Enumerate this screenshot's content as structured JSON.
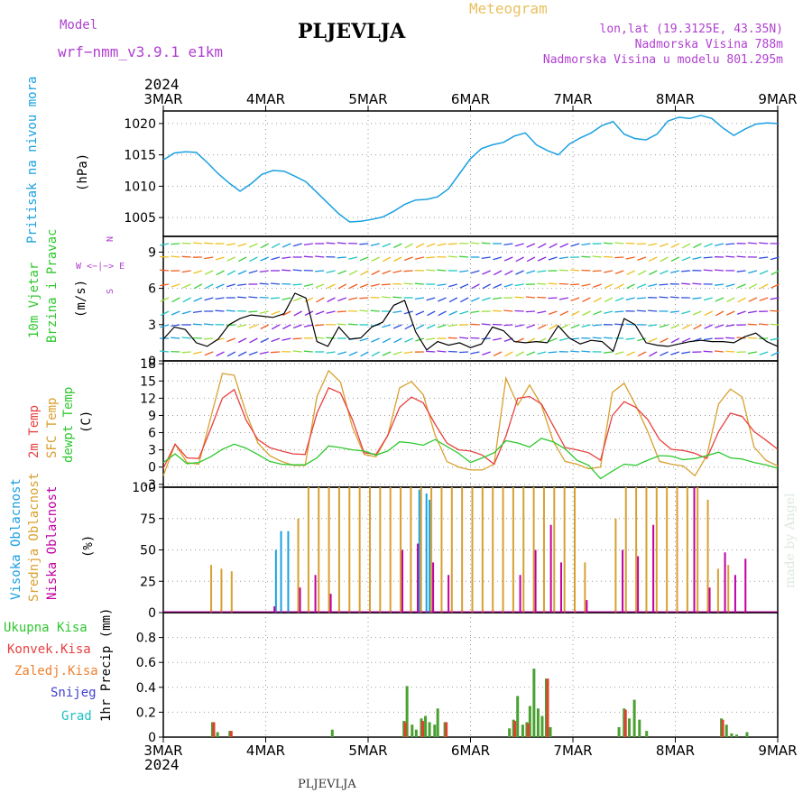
{
  "header": {
    "model_label": "Model",
    "model_name": "wrf−nmm_v3.9.1  e1km",
    "station": "PLJEVLJA",
    "meteogram": "Meteogram",
    "lonlat": "lon,lat (19.3125E, 43.35N)",
    "altitude": "Nadmorska Visina 788m",
    "model_altitude": "Nadmorska Visina u modelu 801.295m",
    "year_top": "2024",
    "year_bottom": "2024",
    "footer_station": "PLJEVLJA",
    "credit": "made by Angel"
  },
  "colors": {
    "pressure": "#1aa0e0",
    "t2m": "#e84040",
    "sfc": "#d8a030",
    "dew": "#2ec82e",
    "high_cloud": "#1aa0e0",
    "mid_cloud": "#d8a030",
    "low_cloud": "#c000a0",
    "total_precip": "#4aa030",
    "conv_precip": "#e04030",
    "purple_label": "#b040d0"
  },
  "panel_labels": {
    "pressure": [
      "Pritisak na nivou mora",
      "(hPa)"
    ],
    "wind": [
      "10m Vjetar",
      "Brzina i Pravac",
      "(m/s)"
    ],
    "wind_compass": [
      "N",
      "W  <−|−>  E",
      "S"
    ],
    "temp": [
      "2m Temp",
      "SFC Temp",
      "dewpt Temp",
      "(C)"
    ],
    "cloud": [
      "Visoka Oblacnost",
      "Srednja Oblacnost",
      "Niska Oblacnost",
      "(%)"
    ],
    "precip_legend": [
      "Ukupna Kisa",
      "Konvek.Kisa",
      "Zaledj.Kisa",
      "Snijeg",
      "Grad"
    ],
    "precip_unit": "1hr Precip (mm)"
  },
  "chart_data": [
    {
      "type": "line",
      "panel": "pressure",
      "x_ticks": [
        "3MAR",
        "4MAR",
        "5MAR",
        "6MAR",
        "7MAR",
        "8MAR",
        "9MAR"
      ],
      "ylim": [
        1002,
        1022
      ],
      "y_ticks": [
        1005,
        1010,
        1015,
        1020
      ],
      "series": [
        {
          "values": [
            1014.2,
            1015.3,
            1015.5,
            1015.4,
            1013.8,
            1012.0,
            1010.5,
            1009.2,
            1010.4,
            1011.9,
            1012.5,
            1012.4,
            1011.6,
            1010.7,
            1009.0,
            1007.3,
            1005.6,
            1004.3,
            1004.4,
            1004.7,
            1005.1,
            1006.0,
            1007.1,
            1007.8,
            1007.9,
            1008.3,
            1009.6,
            1012.0,
            1014.4,
            1016.0,
            1016.6,
            1017.0,
            1018.0,
            1018.5,
            1016.6,
            1015.7,
            1015.0,
            1016.7,
            1017.7,
            1018.5,
            1019.7,
            1020.3,
            1018.3,
            1017.6,
            1017.4,
            1018.3,
            1020.4,
            1021.0,
            1020.8,
            1021.3,
            1020.8,
            1019.3,
            1018.1,
            1019.1,
            1019.9,
            1020.1,
            1020.0
          ]
        }
      ]
    },
    {
      "type": "line",
      "panel": "wind",
      "ylim": [
        0,
        10.3
      ],
      "y_ticks": [
        0,
        3,
        6,
        9
      ],
      "series": [
        {
          "values": [
            1.8,
            2.8,
            2.6,
            1.5,
            1.2,
            1.8,
            3.0,
            3.5,
            3.8,
            3.7,
            3.6,
            3.9,
            5.6,
            5.2,
            1.6,
            1.2,
            2.8,
            1.8,
            1.9,
            2.8,
            3.2,
            4.6,
            5.0,
            2.4,
            0.9,
            1.6,
            1.3,
            1.5,
            1.1,
            1.4,
            2.8,
            2.5,
            1.6,
            1.5,
            1.6,
            1.5,
            2.9,
            1.9,
            1.4,
            1.7,
            1.6,
            0.8,
            3.5,
            3.0,
            1.5,
            1.3,
            1.2,
            1.4,
            1.6,
            1.7,
            1.6,
            1.6,
            1.5,
            2.0,
            2.3,
            1.6,
            1.2
          ]
        }
      ]
    },
    {
      "type": "line",
      "panel": "temperature",
      "ylim": [
        -3.5,
        18.5
      ],
      "y_ticks": [
        -3,
        0,
        3,
        6,
        9,
        12,
        15,
        18
      ],
      "series": [
        {
          "name": "2m Temp",
          "values": [
            -0.2,
            4.0,
            1.6,
            1.5,
            6.6,
            12.0,
            13.5,
            8.2,
            4.8,
            3.4,
            2.8,
            2.3,
            2.2,
            9.4,
            13.8,
            12.9,
            8.3,
            2.5,
            2.2,
            5.5,
            10.4,
            12.2,
            11.2,
            7.5,
            4.2,
            3.0,
            2.8,
            2.1,
            0.5,
            5.4,
            12.0,
            12.3,
            11.0,
            7.2,
            3.4,
            3.0,
            2.5,
            1.2,
            9.0,
            11.4,
            10.4,
            8.3,
            4.8,
            3.1,
            2.9,
            2.4,
            1.5,
            6.2,
            9.4,
            8.8,
            6.2,
            4.7,
            3.1
          ]
        },
        {
          "name": "SFC Temp",
          "values": [
            -1.5,
            4.0,
            0.8,
            0.5,
            8.5,
            16.3,
            16.0,
            9.5,
            4.2,
            2.0,
            1.0,
            0.3,
            0.3,
            12.3,
            16.8,
            14.8,
            7.0,
            2.2,
            1.8,
            5.5,
            13.8,
            14.9,
            12.6,
            5.6,
            1.0,
            0.0,
            -0.5,
            -0.5,
            0.5,
            15.5,
            10.8,
            14.3,
            10.8,
            4.5,
            1.0,
            0.5,
            -0.3,
            0.0,
            13.0,
            14.6,
            10.7,
            6.2,
            1.0,
            0.5,
            0.2,
            -1.5,
            2.0,
            11.0,
            13.6,
            12.2,
            3.5,
            1.2,
            0.2
          ]
        },
        {
          "name": "dewpt Temp",
          "values": [
            0.8,
            2.3,
            0.6,
            0.8,
            1.8,
            3.1,
            4.0,
            3.3,
            2.2,
            1.0,
            0.5,
            0.4,
            0.4,
            1.6,
            3.7,
            3.4,
            3.0,
            2.8,
            2.1,
            2.8,
            4.4,
            4.2,
            3.8,
            4.8,
            3.6,
            2.4,
            0.8,
            1.6,
            2.5,
            4.6,
            4.2,
            3.5,
            5.0,
            4.4,
            3.2,
            1.2,
            0.3,
            -2.0,
            -0.7,
            0.5,
            0.3,
            1.2,
            2.0,
            1.9,
            1.3,
            1.5,
            2.0,
            2.6,
            1.6,
            1.4,
            0.8,
            0.4,
            -0.2
          ]
        }
      ]
    },
    {
      "type": "bar",
      "panel": "cloud",
      "ylim": [
        0,
        100
      ],
      "y_ticks": [
        0,
        25,
        50,
        75,
        100
      ],
      "series": [
        {
          "name": "Visoka Oblacnost",
          "values": [
            {
              "x": 4.1,
              "v": 50
            },
            {
              "x": 4.15,
              "v": 65
            },
            {
              "x": 4.22,
              "v": 65
            },
            {
              "x": 5.5,
              "v": 98
            },
            {
              "x": 5.57,
              "v": 95
            },
            {
              "x": 5.6,
              "v": 90
            }
          ]
        },
        {
          "name": "Srednja Oblacnost",
          "values": [
            {
              "x": 3.45,
              "v": 38
            },
            {
              "x": 3.55,
              "v": 35
            },
            {
              "x": 3.65,
              "v": 33
            },
            {
              "x": 4.3,
              "v": 75
            },
            {
              "x": 4.4,
              "v": 100
            },
            {
              "x": 4.5,
              "v": 100
            },
            {
              "x": 4.6,
              "v": 100
            },
            {
              "x": 4.7,
              "v": 100
            },
            {
              "x": 4.8,
              "v": 100
            },
            {
              "x": 4.9,
              "v": 100
            },
            {
              "x": 5.0,
              "v": 100
            },
            {
              "x": 5.1,
              "v": 100
            },
            {
              "x": 5.2,
              "v": 100
            },
            {
              "x": 5.3,
              "v": 100
            },
            {
              "x": 5.4,
              "v": 100
            },
            {
              "x": 5.5,
              "v": 100
            },
            {
              "x": 5.6,
              "v": 100
            },
            {
              "x": 5.7,
              "v": 100
            },
            {
              "x": 5.8,
              "v": 100
            },
            {
              "x": 5.9,
              "v": 100
            },
            {
              "x": 6.0,
              "v": 100
            },
            {
              "x": 6.1,
              "v": 100
            },
            {
              "x": 6.2,
              "v": 100
            },
            {
              "x": 6.3,
              "v": 100
            },
            {
              "x": 6.4,
              "v": 100
            },
            {
              "x": 6.5,
              "v": 100
            },
            {
              "x": 6.6,
              "v": 100
            },
            {
              "x": 6.7,
              "v": 100
            },
            {
              "x": 6.8,
              "v": 100
            },
            {
              "x": 6.9,
              "v": 100
            },
            {
              "x": 7.0,
              "v": 100
            },
            {
              "x": 7.1,
              "v": 40
            },
            {
              "x": 7.4,
              "v": 75
            },
            {
              "x": 7.5,
              "v": 100
            },
            {
              "x": 7.6,
              "v": 100
            },
            {
              "x": 7.7,
              "v": 100
            },
            {
              "x": 7.8,
              "v": 100
            },
            {
              "x": 7.9,
              "v": 100
            },
            {
              "x": 8.0,
              "v": 100
            },
            {
              "x": 8.1,
              "v": 100
            },
            {
              "x": 8.2,
              "v": 100
            },
            {
              "x": 8.3,
              "v": 90
            },
            {
              "x": 8.4,
              "v": 35
            },
            {
              "x": 8.5,
              "v": 38
            }
          ]
        },
        {
          "name": "Niska Oblacnost",
          "values": [
            {
              "x": 4.05,
              "v": 5
            },
            {
              "x": 4.3,
              "v": 20
            },
            {
              "x": 4.45,
              "v": 30
            },
            {
              "x": 4.6,
              "v": 15
            },
            {
              "x": 5.3,
              "v": 50
            },
            {
              "x": 5.45,
              "v": 55
            },
            {
              "x": 5.6,
              "v": 40
            },
            {
              "x": 5.75,
              "v": 30
            },
            {
              "x": 6.45,
              "v": 30
            },
            {
              "x": 6.6,
              "v": 50
            },
            {
              "x": 6.75,
              "v": 70
            },
            {
              "x": 6.85,
              "v": 40
            },
            {
              "x": 7.1,
              "v": 10
            },
            {
              "x": 7.45,
              "v": 50
            },
            {
              "x": 7.6,
              "v": 45
            },
            {
              "x": 7.75,
              "v": 70
            },
            {
              "x": 8.15,
              "v": 100
            },
            {
              "x": 8.3,
              "v": 20
            },
            {
              "x": 8.45,
              "v": 48
            },
            {
              "x": 8.55,
              "v": 30
            },
            {
              "x": 8.65,
              "v": 43
            }
          ]
        }
      ]
    },
    {
      "type": "bar",
      "panel": "precipitation",
      "ylim": [
        0,
        1.0
      ],
      "y_ticks": [
        0,
        0.2,
        0.4,
        0.6,
        0.8
      ],
      "series": [
        {
          "name": "Ukupna Kisa",
          "values": [
            {
              "x": 3.48,
              "v": 0.12
            },
            {
              "x": 3.53,
              "v": 0.04
            },
            {
              "x": 3.65,
              "v": 0.05
            },
            {
              "x": 4.65,
              "v": 0.06
            },
            {
              "x": 5.35,
              "v": 0.13
            },
            {
              "x": 5.38,
              "v": 0.41
            },
            {
              "x": 5.43,
              "v": 0.1
            },
            {
              "x": 5.47,
              "v": 0.06
            },
            {
              "x": 5.52,
              "v": 0.15
            },
            {
              "x": 5.56,
              "v": 0.17
            },
            {
              "x": 5.6,
              "v": 0.12
            },
            {
              "x": 5.65,
              "v": 0.1
            },
            {
              "x": 5.68,
              "v": 0.23
            },
            {
              "x": 5.75,
              "v": 0.12
            },
            {
              "x": 6.38,
              "v": 0.07
            },
            {
              "x": 6.42,
              "v": 0.14
            },
            {
              "x": 6.46,
              "v": 0.33
            },
            {
              "x": 6.51,
              "v": 0.1
            },
            {
              "x": 6.55,
              "v": 0.12
            },
            {
              "x": 6.58,
              "v": 0.25
            },
            {
              "x": 6.62,
              "v": 0.55
            },
            {
              "x": 6.66,
              "v": 0.23
            },
            {
              "x": 6.7,
              "v": 0.17
            },
            {
              "x": 6.74,
              "v": 0.47
            },
            {
              "x": 6.78,
              "v": 0.08
            },
            {
              "x": 7.45,
              "v": 0.08
            },
            {
              "x": 7.5,
              "v": 0.23
            },
            {
              "x": 7.55,
              "v": 0.15
            },
            {
              "x": 7.6,
              "v": 0.3
            },
            {
              "x": 7.65,
              "v": 0.14
            },
            {
              "x": 7.72,
              "v": 0.05
            },
            {
              "x": 8.45,
              "v": 0.15
            },
            {
              "x": 8.5,
              "v": 0.1
            },
            {
              "x": 8.55,
              "v": 0.03
            },
            {
              "x": 8.6,
              "v": 0.02
            },
            {
              "x": 8.7,
              "v": 0.04
            }
          ]
        },
        {
          "name": "Konvek.Kisa",
          "values": [
            {
              "x": 3.48,
              "v": 0.12
            },
            {
              "x": 3.65,
              "v": 0.05
            },
            {
              "x": 5.35,
              "v": 0.12
            },
            {
              "x": 5.52,
              "v": 0.13
            },
            {
              "x": 5.75,
              "v": 0.12
            },
            {
              "x": 6.42,
              "v": 0.13
            },
            {
              "x": 6.55,
              "v": 0.11
            },
            {
              "x": 6.74,
              "v": 0.47
            },
            {
              "x": 7.5,
              "v": 0.22
            },
            {
              "x": 8.45,
              "v": 0.14
            }
          ]
        }
      ]
    }
  ]
}
